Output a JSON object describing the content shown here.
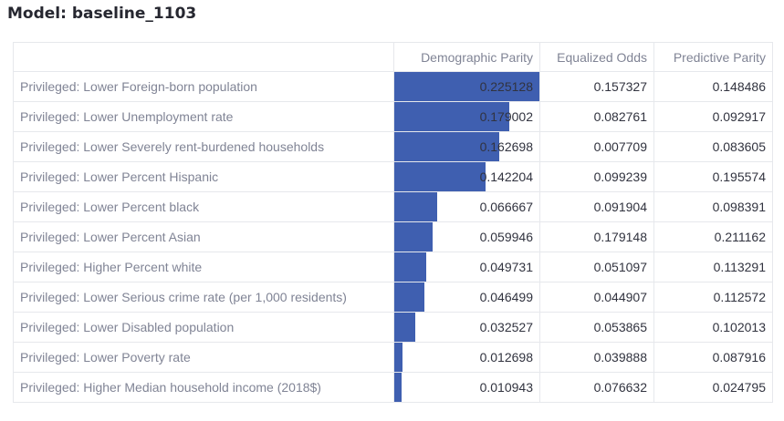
{
  "model_title": "Model: baseline_1103",
  "table": {
    "columns": [
      "",
      "Demographic Parity",
      "Equalized Odds",
      "Predictive Parity"
    ],
    "bar_max": 0.225128,
    "rows": [
      {
        "label": "Privileged: Lower Foreign-born population",
        "dp": "0.225128",
        "eo": "0.157327",
        "pp": "0.148486"
      },
      {
        "label": "Privileged: Lower Unemployment rate",
        "dp": "0.179002",
        "eo": "0.082761",
        "pp": "0.092917"
      },
      {
        "label": "Privileged: Lower Severely rent-burdened households",
        "dp": "0.162698",
        "eo": "0.007709",
        "pp": "0.083605"
      },
      {
        "label": "Privileged: Lower Percent Hispanic",
        "dp": "0.142204",
        "eo": "0.099239",
        "pp": "0.195574"
      },
      {
        "label": "Privileged: Lower Percent black",
        "dp": "0.066667",
        "eo": "0.091904",
        "pp": "0.098391"
      },
      {
        "label": "Privileged: Lower Percent Asian",
        "dp": "0.059946",
        "eo": "0.179148",
        "pp": "0.211162"
      },
      {
        "label": "Privileged: Higher Percent white",
        "dp": "0.049731",
        "eo": "0.051097",
        "pp": "0.113291"
      },
      {
        "label": "Privileged: Lower Serious crime rate (per 1,000 residents)",
        "dp": "0.046499",
        "eo": "0.044907",
        "pp": "0.112572"
      },
      {
        "label": "Privileged: Lower Disabled population",
        "dp": "0.032527",
        "eo": "0.053865",
        "pp": "0.102013"
      },
      {
        "label": "Privileged: Lower Poverty rate",
        "dp": "0.012698",
        "eo": "0.039888",
        "pp": "0.087916"
      },
      {
        "label": "Privileged: Higher Median household income (2018$)",
        "dp": "0.010943",
        "eo": "0.076632",
        "pp": "0.024795"
      }
    ]
  },
  "colors": {
    "bar": "#3f5fb0",
    "header_text": "#808495",
    "cell_text": "#31333f",
    "border": "#e6e8ec"
  }
}
